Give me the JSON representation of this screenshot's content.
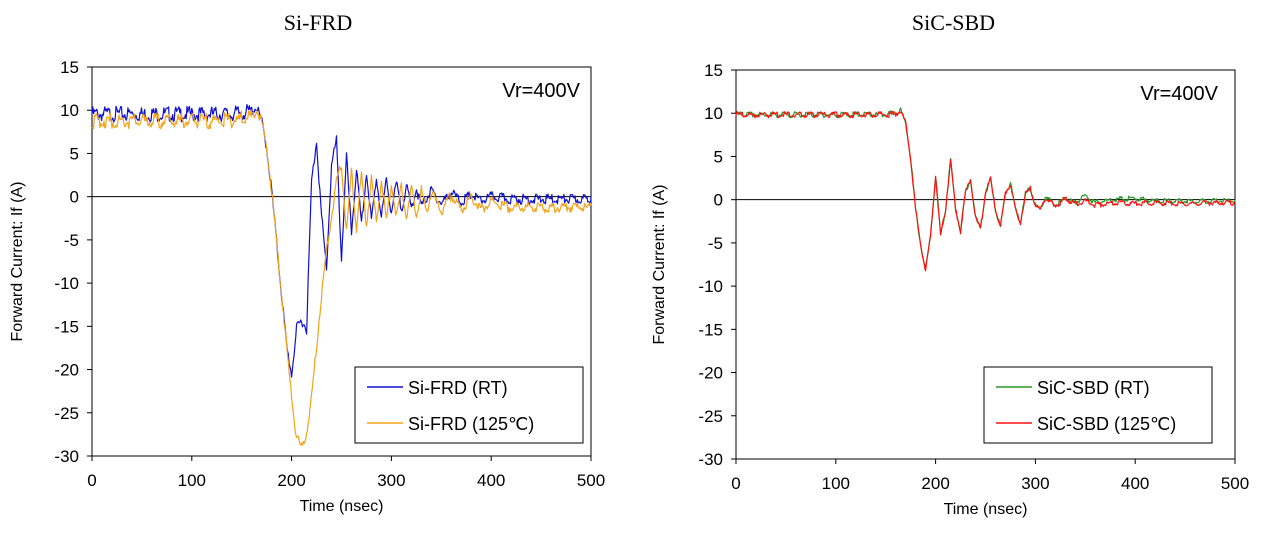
{
  "chart_data": [
    {
      "type": "line",
      "title": "Si-FRD",
      "xlabel": "Time (nsec)",
      "ylabel": "Forward Current: If (A)",
      "xlim": [
        0,
        500
      ],
      "ylim": [
        -30,
        15
      ],
      "x_ticks": [
        "0",
        "100",
        "200",
        "300",
        "400",
        "500"
      ],
      "y_ticks": [
        "15",
        "10",
        "5",
        "0",
        "-5",
        "-10",
        "-15",
        "-20",
        "-25",
        "-30"
      ],
      "annotation": "Vr=400V",
      "legend_position": "bottom-right",
      "grid": false,
      "series": [
        {
          "name": "Si-FRD (RT)",
          "color": "#1010d0",
          "points": [
            [
              0,
              10
            ],
            [
              20,
              10
            ],
            [
              40,
              10
            ],
            [
              60,
              10
            ],
            [
              80,
              10
            ],
            [
              100,
              10
            ],
            [
              120,
              10
            ],
            [
              140,
              10
            ],
            [
              160,
              10.3
            ],
            [
              165,
              10.6
            ],
            [
              170,
              9
            ],
            [
              175,
              6
            ],
            [
              180,
              1
            ],
            [
              185,
              -5
            ],
            [
              190,
              -11
            ],
            [
              195,
              -17
            ],
            [
              200,
              -20.3
            ],
            [
              205,
              -15
            ],
            [
              210,
              -14
            ],
            [
              215,
              -15
            ],
            [
              220,
              2
            ],
            [
              225,
              6.8
            ],
            [
              230,
              -2
            ],
            [
              235,
              -8
            ],
            [
              240,
              4
            ],
            [
              245,
              6.8
            ],
            [
              250,
              -7
            ],
            [
              255,
              5
            ],
            [
              260,
              -4
            ],
            [
              265,
              3.5
            ],
            [
              270,
              -3
            ],
            [
              275,
              3
            ],
            [
              280,
              -2.5
            ],
            [
              285,
              2.5
            ],
            [
              290,
              -2
            ],
            [
              295,
              2.2
            ],
            [
              300,
              -1.5
            ],
            [
              305,
              1.8
            ],
            [
              310,
              -1.2
            ],
            [
              315,
              1.5
            ],
            [
              320,
              -1
            ],
            [
              325,
              1.2
            ],
            [
              330,
              -0.8
            ],
            [
              340,
              1
            ],
            [
              350,
              -0.5
            ],
            [
              360,
              0.8
            ],
            [
              370,
              -0.3
            ],
            [
              380,
              0.5
            ],
            [
              390,
              -0.2
            ],
            [
              400,
              0.3
            ],
            [
              420,
              0
            ],
            [
              440,
              0
            ],
            [
              460,
              0
            ],
            [
              480,
              0
            ],
            [
              500,
              0
            ]
          ]
        },
        {
          "name": "Si-FRD (125℃)",
          "color": "#f5a21b",
          "points": [
            [
              0,
              9.2
            ],
            [
              20,
              9.2
            ],
            [
              40,
              9.2
            ],
            [
              60,
              9.2
            ],
            [
              80,
              9.2
            ],
            [
              100,
              9.2
            ],
            [
              120,
              9.2
            ],
            [
              140,
              9.3
            ],
            [
              160,
              9.6
            ],
            [
              165,
              10.4
            ],
            [
              170,
              9
            ],
            [
              175,
              6
            ],
            [
              180,
              1
            ],
            [
              185,
              -5
            ],
            [
              190,
              -11
            ],
            [
              195,
              -17
            ],
            [
              200,
              -23
            ],
            [
              205,
              -27.5
            ],
            [
              210,
              -28.8
            ],
            [
              215,
              -27
            ],
            [
              220,
              -23
            ],
            [
              225,
              -17
            ],
            [
              230,
              -11
            ],
            [
              235,
              -6
            ],
            [
              240,
              -2
            ],
            [
              245,
              2
            ],
            [
              250,
              4.2
            ],
            [
              255,
              -4
            ],
            [
              260,
              3.2
            ],
            [
              265,
              -3.5
            ],
            [
              270,
              3
            ],
            [
              275,
              -3
            ],
            [
              280,
              2.5
            ],
            [
              285,
              -2.8
            ],
            [
              290,
              2.2
            ],
            [
              295,
              -2.5
            ],
            [
              300,
              2
            ],
            [
              305,
              -2.2
            ],
            [
              310,
              1.5
            ],
            [
              315,
              -2
            ],
            [
              320,
              1.2
            ],
            [
              325,
              -1.8
            ],
            [
              330,
              1
            ],
            [
              335,
              -1.6
            ],
            [
              340,
              0.8
            ],
            [
              350,
              -1.4
            ],
            [
              360,
              0.5
            ],
            [
              370,
              -1.2
            ],
            [
              380,
              0.2
            ],
            [
              390,
              -1.2
            ],
            [
              400,
              -0.3
            ],
            [
              420,
              -1
            ],
            [
              440,
              -0.8
            ],
            [
              460,
              -1
            ],
            [
              480,
              -0.9
            ],
            [
              500,
              -1
            ]
          ]
        }
      ]
    },
    {
      "type": "line",
      "title": "SiC-SBD",
      "xlabel": "Time (nsec)",
      "ylabel": "Forward Current: If (A)",
      "xlim": [
        0,
        500
      ],
      "ylim": [
        -30,
        15
      ],
      "x_ticks": [
        "0",
        "100",
        "200",
        "300",
        "400",
        "500"
      ],
      "y_ticks": [
        "15",
        "10",
        "5",
        "0",
        "-5",
        "-10",
        "-15",
        "-20",
        "-25",
        "-30"
      ],
      "annotation": "Vr=400V",
      "legend_position": "bottom-right",
      "grid": false,
      "series": [
        {
          "name": "SiC-SBD (RT)",
          "color": "#2a9a2a",
          "points": [
            [
              0,
              10
            ],
            [
              50,
              10
            ],
            [
              100,
              10
            ],
            [
              150,
              10
            ],
            [
              160,
              10.2
            ],
            [
              165,
              10.5
            ],
            [
              170,
              9
            ],
            [
              175,
              5
            ],
            [
              180,
              -1
            ],
            [
              185,
              -5
            ],
            [
              190,
              -8
            ],
            [
              195,
              -4
            ],
            [
              200,
              3
            ],
            [
              205,
              -4
            ],
            [
              210,
              -1
            ],
            [
              215,
              4.8
            ],
            [
              220,
              -1
            ],
            [
              225,
              -3.5
            ],
            [
              230,
              1
            ],
            [
              235,
              2.5
            ],
            [
              240,
              -2
            ],
            [
              245,
              -3
            ],
            [
              250,
              1
            ],
            [
              255,
              2.5
            ],
            [
              260,
              -1
            ],
            [
              265,
              -3
            ],
            [
              270,
              1
            ],
            [
              275,
              2
            ],
            [
              280,
              -1
            ],
            [
              285,
              -2.5
            ],
            [
              290,
              0.8
            ],
            [
              295,
              1.5
            ],
            [
              300,
              -0.5
            ],
            [
              305,
              -1
            ],
            [
              310,
              0.5
            ],
            [
              320,
              -0.5
            ],
            [
              330,
              0.3
            ],
            [
              340,
              -0.2
            ],
            [
              350,
              0.6
            ],
            [
              360,
              -0.2
            ],
            [
              380,
              0.2
            ],
            [
              400,
              0.3
            ],
            [
              420,
              0
            ],
            [
              440,
              0
            ],
            [
              460,
              0
            ],
            [
              480,
              0
            ],
            [
              500,
              0
            ]
          ]
        },
        {
          "name": "SiC-SBD (125℃)",
          "color": "#ff1010",
          "points": [
            [
              0,
              10
            ],
            [
              50,
              10
            ],
            [
              100,
              10
            ],
            [
              150,
              10
            ],
            [
              160,
              10.1
            ],
            [
              165,
              10.4
            ],
            [
              170,
              9
            ],
            [
              175,
              5
            ],
            [
              180,
              -1
            ],
            [
              185,
              -5
            ],
            [
              190,
              -8
            ],
            [
              195,
              -4
            ],
            [
              200,
              3
            ],
            [
              205,
              -4
            ],
            [
              210,
              -1
            ],
            [
              215,
              4.8
            ],
            [
              220,
              -1
            ],
            [
              225,
              -3.5
            ],
            [
              230,
              1
            ],
            [
              235,
              2.5
            ],
            [
              240,
              -2
            ],
            [
              245,
              -3.2
            ],
            [
              250,
              1
            ],
            [
              255,
              2.5
            ],
            [
              260,
              -1
            ],
            [
              265,
              -3
            ],
            [
              270,
              1
            ],
            [
              275,
              2
            ],
            [
              280,
              -1
            ],
            [
              285,
              -2.5
            ],
            [
              290,
              0.8
            ],
            [
              295,
              1.5
            ],
            [
              300,
              -0.5
            ],
            [
              305,
              -1
            ],
            [
              310,
              0.3
            ],
            [
              320,
              -0.6
            ],
            [
              330,
              0.2
            ],
            [
              340,
              -0.4
            ],
            [
              350,
              0
            ],
            [
              360,
              -0.5
            ],
            [
              380,
              -0.2
            ],
            [
              400,
              -0.3
            ],
            [
              420,
              -0.2
            ],
            [
              440,
              -0.3
            ],
            [
              460,
              -0.3
            ],
            [
              480,
              -0.2
            ],
            [
              500,
              -0.2
            ]
          ]
        }
      ]
    }
  ]
}
